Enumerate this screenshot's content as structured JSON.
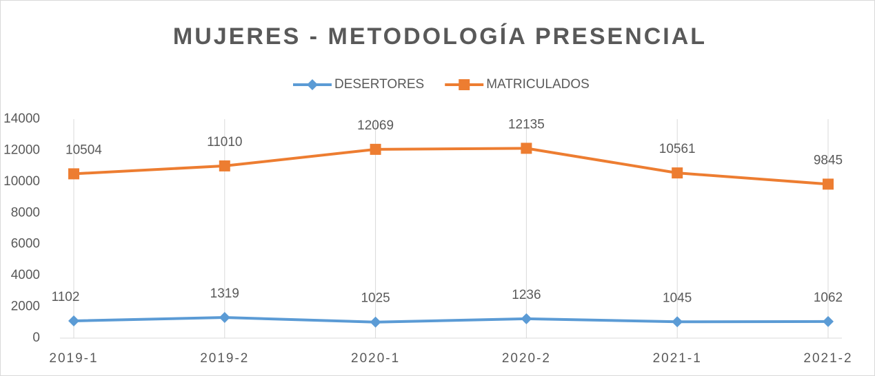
{
  "chart_data": {
    "type": "line",
    "title": "MUJERES - METODOLOGÍA PRESENCIAL",
    "categories": [
      "2019-1",
      "2019-2",
      "2020-1",
      "2020-2",
      "2021-1",
      "2021-2"
    ],
    "series": [
      {
        "name": "DESERTORES",
        "color": "#5b9bd5",
        "marker": "diamond",
        "values": [
          1102,
          1319,
          1025,
          1236,
          1045,
          1062
        ]
      },
      {
        "name": "MATRICULADOS",
        "color": "#ed7d31",
        "marker": "square",
        "values": [
          10504,
          11010,
          12069,
          12135,
          10561,
          9845
        ]
      }
    ],
    "ylim": [
      0,
      14000
    ],
    "yticks": [
      0,
      2000,
      4000,
      6000,
      8000,
      10000,
      12000,
      14000
    ],
    "xgrid": true,
    "data_labels": true,
    "legend": "top"
  }
}
